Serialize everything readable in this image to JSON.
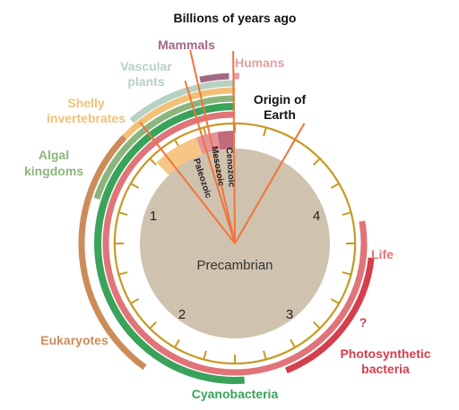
{
  "title": "Billions of years ago",
  "colors": {
    "bezel": "#c79a25",
    "core": "#cfc2af",
    "pointer": "#f0743d",
    "mammals": "#a26883",
    "humans": "#e3a0a4",
    "vascular": "#b7d0c2",
    "shelly": "#f2c077",
    "algal": "#8cb57c",
    "eukaryotes": "#cc8c5a",
    "cyanobacteria": "#3aa35a",
    "life": "#e07478",
    "photosynthetic": "#d53e4b",
    "paleozoic": "#f6c687",
    "mesozoic": "#e4949c",
    "cenozoic": "#c06a7a"
  },
  "eras": {
    "paleozoic": "Paleozoic",
    "mesozoic": "Mesozoic",
    "cenozoic": "Cenozoic",
    "precambrian": "Precambrian"
  },
  "scale": [
    "1",
    "2",
    "3",
    "4"
  ],
  "labels": {
    "mammals": "Mammals",
    "humans": "Humans",
    "vascular_line1": "Vascular",
    "vascular_line2": "plants",
    "shelly_line1": "Shelly",
    "shelly_line2": "invertebrates",
    "origin_line1": "Origin of",
    "origin_line2": "Earth",
    "algal_line1": "Algal",
    "algal_line2": "kingdoms",
    "life": "Life",
    "question": "?",
    "eukaryotes": "Eukaryotes",
    "photo_line1": "Photosynthetic",
    "photo_line2": "bacteria",
    "cyanobacteria": "Cyanobacteria"
  }
}
